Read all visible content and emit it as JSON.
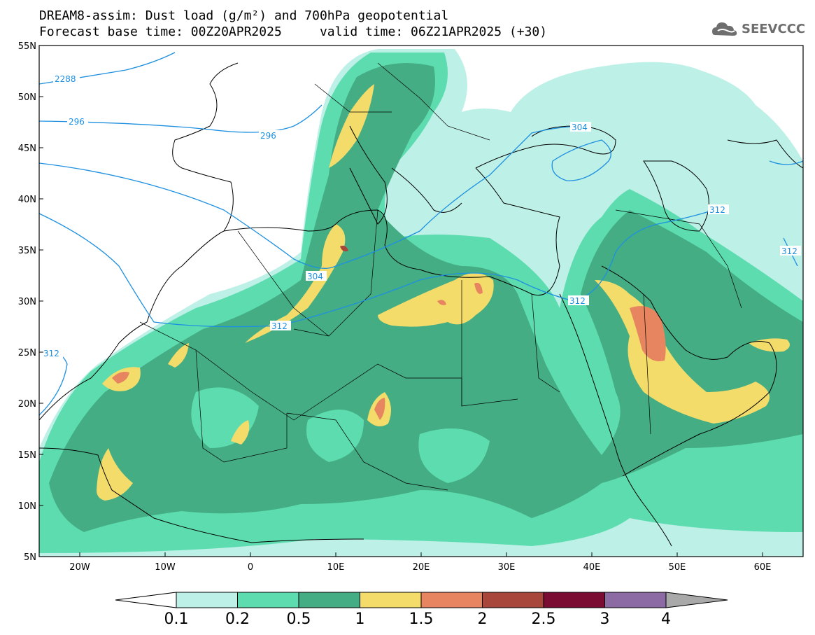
{
  "title_line1": "DREAM8-assim: Dust load (g/m²) and 700hPa geopotential",
  "title_line2": "Forecast base time: 00Z20APR2025     valid time: 06Z21APR2025 (+30)",
  "logo_text": "SEEVCCC",
  "lat_labels": [
    "55N",
    "50N",
    "45N",
    "40N",
    "35N",
    "30N",
    "25N",
    "20N",
    "15N",
    "10N",
    "5N"
  ],
  "lon_labels": [
    "20W",
    "10W",
    "0",
    "10E",
    "20E",
    "30E",
    "40E",
    "50E",
    "60E"
  ],
  "contour_labels": [
    "2288",
    "296",
    "296",
    "304",
    "304",
    "312",
    "312",
    "312",
    "312",
    "312"
  ],
  "colorbar": {
    "ticks": [
      "0.1",
      "0.2",
      "0.5",
      "1",
      "1.5",
      "2",
      "2.5",
      "3",
      "4"
    ],
    "colors": [
      "#bdf0e6",
      "#5ddcb0",
      "#44ad84",
      "#f3dc6a",
      "#e6855f",
      "#a8463c",
      "#7a0b33",
      "#8c6aa3",
      "#a9a9a9"
    ],
    "under_color": "#ffffff",
    "over_color": "#a9a9a9"
  },
  "map_colors": {
    "ocean": "#ffffff",
    "coast": "#000000",
    "contour": "#1e90e0"
  }
}
